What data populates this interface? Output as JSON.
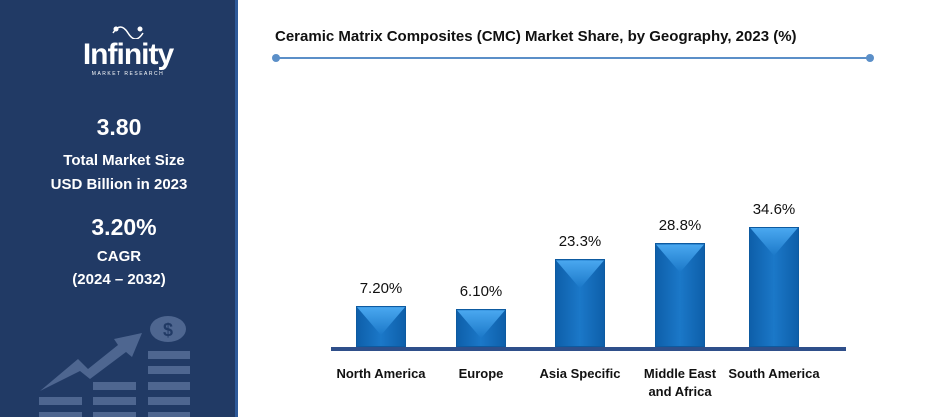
{
  "sidebar": {
    "logo": {
      "name": "Infinity",
      "tagline": "MARKET RESEARCH"
    },
    "market_size": "3.80",
    "market_size_label1": "Total Market Size",
    "market_size_label2": "USD Billion in 2023",
    "cagr": "3.20%",
    "cagr_label": "CAGR",
    "cagr_period": "(2024 – 2032)"
  },
  "chart_data": {
    "type": "bar",
    "title": "Ceramic Matrix Composites (CMC) Market Share, by Geography, 2023 (%)",
    "categories": [
      "North America",
      "Europe",
      "Asia Specific",
      "Middle East and Africa",
      "South America"
    ],
    "values": [
      7.2,
      6.1,
      23.3,
      28.8,
      34.6
    ],
    "data_labels": [
      "7.20%",
      "6.10%",
      "23.3%",
      "28.8%",
      "34.6%"
    ],
    "bar_color": "#1b78c8",
    "grid": false
  }
}
